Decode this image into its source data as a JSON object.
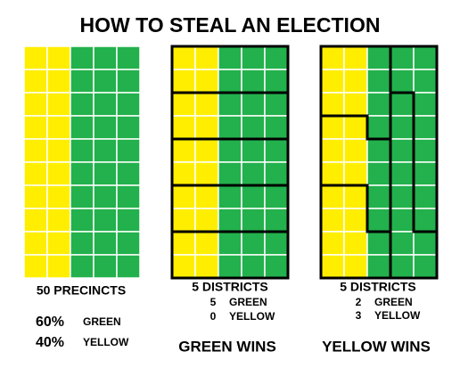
{
  "title": "HOW TO STEAL AN ELECTION",
  "panels": [
    {
      "heading": "50 PRECINCTS",
      "lines": [
        {
          "number": "60%",
          "label": "GREEN"
        },
        {
          "number": "40%",
          "label": "YELLOW"
        }
      ]
    },
    {
      "heading": "5 DISTRICTS",
      "lines": [
        {
          "number": "5",
          "label": "GREEN"
        },
        {
          "number": "0",
          "label": "YELLOW"
        }
      ],
      "result": "GREEN WINS"
    },
    {
      "heading": "5 DISTRICTS",
      "lines": [
        {
          "number": "2",
          "label": "GREEN"
        },
        {
          "number": "3",
          "label": "YELLOW"
        }
      ],
      "result": "YELLOW WINS"
    }
  ]
}
